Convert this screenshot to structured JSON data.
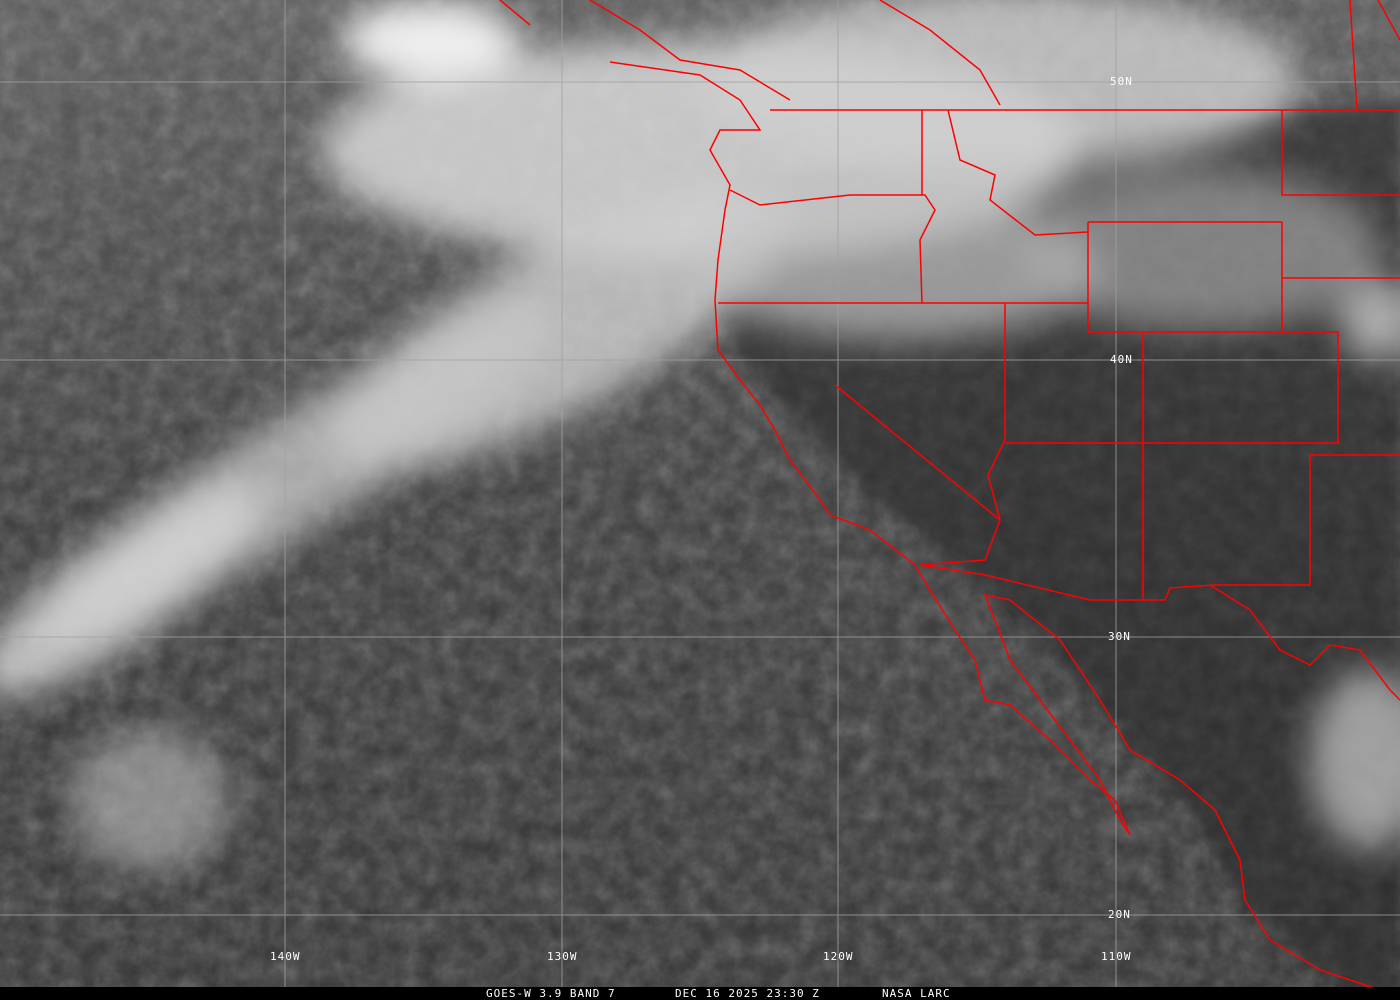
{
  "image": {
    "type": "satellite infrared image",
    "border_color": "#ff0000",
    "grid_color": "#a0a0a0"
  },
  "grid": {
    "latitude_labels": [
      "50N",
      "40N",
      "30N",
      "20N"
    ],
    "longitude_labels": [
      "140W",
      "130W",
      "120W",
      "110W"
    ]
  },
  "caption": {
    "satellite": "GOES-W 3.9 BAND 7",
    "datetime": "DEC 16 2025 23:30 Z",
    "source": "NASA LARC"
  }
}
